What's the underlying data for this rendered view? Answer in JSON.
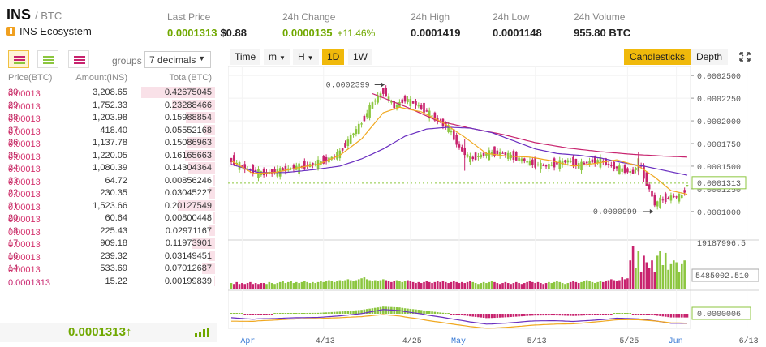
{
  "header": {
    "symbol": "INS",
    "quote": "/ BTC",
    "coin_name": "INS Ecosystem",
    "last_price_label": "Last Price",
    "last_price": "0.0001313",
    "last_price_usd": "$0.88",
    "change_label": "24h Change",
    "change": "0.0000135",
    "change_pct": "+11.46%",
    "high_label": "24h High",
    "high": "0.0001419",
    "low_label": "24h Low",
    "low": "0.0001148",
    "volume_label": "24h Volume",
    "volume": "955.80 BTC"
  },
  "orderbook": {
    "groups_label": "groups",
    "groups_value": "7 decimals",
    "headers": [
      "Price(BTC)",
      "Amount(INS)",
      "Total(BTC)"
    ],
    "rows": [
      {
        "price_a": "0.00013",
        "price_b": "30",
        "amount": "3,208.65",
        "total": "0.42675045",
        "depth": 0.95
      },
      {
        "price_a": "0.00013",
        "price_b": "29",
        "amount": "1,752.33",
        "total": "0.23288466",
        "depth": 0.55
      },
      {
        "price_a": "0.00013",
        "price_b": "28",
        "amount": "1,203.98",
        "total": "0.15988854",
        "depth": 0.38
      },
      {
        "price_a": "0.00013",
        "price_b": "27",
        "amount": "418.40",
        "total": "0.05552168",
        "depth": 0.14
      },
      {
        "price_a": "0.00013",
        "price_b": "26",
        "amount": "1,137.78",
        "total": "0.15086963",
        "depth": 0.36
      },
      {
        "price_a": "0.00013",
        "price_b": "25",
        "amount": "1,220.05",
        "total": "0.16165663",
        "depth": 0.39
      },
      {
        "price_a": "0.00013",
        "price_b": "24",
        "amount": "1,080.39",
        "total": "0.14304364",
        "depth": 0.34
      },
      {
        "price_a": "0.00013",
        "price_b": "23",
        "amount": "64.72",
        "total": "0.00856246",
        "depth": 0.02
      },
      {
        "price_a": "0.00013",
        "price_b": "22",
        "amount": "230.35",
        "total": "0.03045227",
        "depth": 0.08
      },
      {
        "price_a": "0.00013",
        "price_b": "21",
        "amount": "1,523.66",
        "total": "0.20127549",
        "depth": 0.48
      },
      {
        "price_a": "0.00013",
        "price_b": "20",
        "amount": "60.64",
        "total": "0.00800448",
        "depth": 0.02
      },
      {
        "price_a": "0.00013",
        "price_b": "18",
        "amount": "225.43",
        "total": "0.02971167",
        "depth": 0.07
      },
      {
        "price_a": "0.00013",
        "price_b": "17",
        "amount": "909.18",
        "total": "0.11973901",
        "depth": 0.29
      },
      {
        "price_a": "0.00013",
        "price_b": "16",
        "amount": "239.32",
        "total": "0.03149451",
        "depth": 0.08
      },
      {
        "price_a": "0.00013",
        "price_b": "14",
        "amount": "533.69",
        "total": "0.07012687",
        "depth": 0.17
      },
      {
        "price_a": "0.0001313",
        "price_b": "",
        "amount": "15.22",
        "total": "0.00199839",
        "depth": 0.01
      }
    ],
    "last_price": "0.0001313↑"
  },
  "chart_toolbar": {
    "time": "Time",
    "minutes": "m",
    "hours": "H",
    "day": "1D",
    "week": "1W",
    "candlesticks": "Candlesticks",
    "depth": "Depth"
  },
  "chart_data": {
    "type": "candlestick",
    "price_axis": {
      "ylim": [
        9e-05,
        0.00026
      ],
      "ticks": [
        "0.0002500",
        "0.0002250",
        "0.0002000",
        "0.0001750",
        "0.0001500",
        "0.0001250",
        "0.0001000"
      ]
    },
    "x_ticks": [
      "Apr",
      "4/13",
      "4/25",
      "May",
      "5/13",
      "5/25",
      "Jun",
      "6/13"
    ],
    "current_price_label": "0.0001313",
    "high_annotation": "0.0002399",
    "low_annotation": "0.0000999",
    "volume_axis": {
      "max_label": "19187996.5",
      "mark_label": "5485002.510"
    },
    "indicator_label": "0.0000006",
    "colors": {
      "up": "#8cc63f",
      "down": "#c8236e",
      "ma_short": "#f0a820",
      "ma_mid": "#6a2fc0",
      "ma_long": "#c8236e",
      "accent": "#f0b90b"
    },
    "ma_short_anchors": [
      [
        0,
        0.000156
      ],
      [
        8,
        0.000142
      ],
      [
        16,
        0.000143
      ],
      [
        24,
        0.000148
      ],
      [
        32,
        0.000152
      ],
      [
        40,
        0.000162
      ],
      [
        48,
        0.00018
      ],
      [
        56,
        0.000209
      ],
      [
        62,
        0.000215
      ],
      [
        70,
        0.00021
      ],
      [
        78,
        0.000198
      ],
      [
        86,
        0.000182
      ],
      [
        94,
        0.000164
      ],
      [
        102,
        0.000161
      ],
      [
        110,
        0.00016
      ],
      [
        118,
        0.000156
      ],
      [
        126,
        0.00015
      ],
      [
        134,
        0.000153
      ],
      [
        142,
        0.000157
      ],
      [
        150,
        0.00015
      ],
      [
        156,
        0.000138
      ],
      [
        162,
        0.000123
      ],
      [
        168,
        0.000119
      ]
    ],
    "ma_mid_anchors": [
      [
        0,
        0.000152
      ],
      [
        10,
        0.000143
      ],
      [
        20,
        0.000143
      ],
      [
        30,
        0.000146
      ],
      [
        40,
        0.00015
      ],
      [
        48,
        0.000158
      ],
      [
        56,
        0.000169
      ],
      [
        64,
        0.000183
      ],
      [
        72,
        0.000191
      ],
      [
        80,
        0.000193
      ],
      [
        88,
        0.000192
      ],
      [
        96,
        0.000187
      ],
      [
        104,
        0.000178
      ],
      [
        112,
        0.000169
      ],
      [
        120,
        0.000164
      ],
      [
        128,
        0.000162
      ],
      [
        136,
        0.000159
      ],
      [
        144,
        0.000154
      ],
      [
        152,
        0.00015
      ],
      [
        160,
        0.000145
      ],
      [
        168,
        0.00014
      ]
    ],
    "ma_long_anchors": [
      [
        52,
        0.00023
      ],
      [
        64,
        0.000216
      ],
      [
        76,
        0.0002
      ],
      [
        88,
        0.000192
      ],
      [
        100,
        0.000185
      ],
      [
        112,
        0.000176
      ],
      [
        124,
        0.00017
      ],
      [
        136,
        0.000166
      ],
      [
        148,
        0.000163
      ],
      [
        160,
        0.000161
      ],
      [
        168,
        0.00016
      ]
    ],
    "candle_anchors": [
      [
        0,
        0.000156
      ],
      [
        6,
        0.000146
      ],
      [
        12,
        0.000142
      ],
      [
        18,
        0.000145
      ],
      [
        24,
        0.000149
      ],
      [
        30,
        0.000152
      ],
      [
        36,
        0.000158
      ],
      [
        40,
        0.000165
      ],
      [
        44,
        0.000183
      ],
      [
        48,
        0.000198
      ],
      [
        52,
        0.00022
      ],
      [
        56,
        0.000233
      ],
      [
        60,
        0.000215
      ],
      [
        64,
        0.000224
      ],
      [
        68,
        0.000218
      ],
      [
        72,
        0.00021
      ],
      [
        76,
        0.0002
      ],
      [
        80,
        0.000192
      ],
      [
        84,
        0.00017
      ],
      [
        88,
        0.000158
      ],
      [
        92,
        0.000162
      ],
      [
        96,
        0.000165
      ],
      [
        100,
        0.000164
      ],
      [
        104,
        0.00016
      ],
      [
        108,
        0.000156
      ],
      [
        112,
        0.000152
      ],
      [
        116,
        0.00015
      ],
      [
        120,
        0.000153
      ],
      [
        124,
        0.000156
      ],
      [
        128,
        0.000151
      ],
      [
        132,
        0.000155
      ],
      [
        136,
        0.000156
      ],
      [
        140,
        0.00015
      ],
      [
        144,
        0.000146
      ],
      [
        148,
        0.000143
      ],
      [
        150,
        0.000156
      ],
      [
        152,
        0.000138
      ],
      [
        154,
        0.000124
      ],
      [
        156,
        0.000108
      ],
      [
        158,
        0.000112
      ],
      [
        162,
        0.000116
      ],
      [
        166,
        0.000117
      ],
      [
        168,
        0.0001313
      ]
    ],
    "volume_values": [
      6,
      5,
      7,
      5,
      6,
      5,
      6,
      7,
      5,
      6,
      5,
      6,
      6,
      5,
      7,
      6,
      5,
      6,
      7,
      8,
      6,
      7,
      8,
      6,
      7,
      6,
      7,
      8,
      7,
      6,
      7,
      6,
      7,
      8,
      7,
      8,
      9,
      8,
      7,
      8,
      9,
      8,
      9,
      10,
      9,
      8,
      9,
      10,
      11,
      12,
      10,
      9,
      8,
      9,
      8,
      9,
      10,
      9,
      8,
      7,
      8,
      9,
      8,
      7,
      8,
      9,
      8,
      7,
      6,
      7,
      6,
      7,
      8,
      7,
      6,
      7,
      8,
      7,
      8,
      7,
      6,
      7,
      8,
      7,
      6,
      7,
      6,
      7,
      8,
      7,
      6,
      5,
      6,
      7,
      6,
      7,
      8,
      7,
      6,
      5,
      6,
      7,
      6,
      5,
      6,
      7,
      6,
      5,
      6,
      7,
      8,
      7,
      6,
      7,
      6,
      5,
      6,
      7,
      6,
      7,
      8,
      7,
      6,
      5,
      6,
      7,
      8,
      7,
      6,
      7,
      8,
      9,
      8,
      7,
      6,
      7,
      8,
      7,
      8,
      9,
      10,
      9,
      8,
      9,
      12,
      10,
      11,
      30,
      45,
      22,
      40,
      18,
      35,
      28,
      22,
      30,
      18,
      35,
      40,
      25,
      38,
      20,
      26,
      30,
      28,
      18,
      26,
      30
    ]
  }
}
